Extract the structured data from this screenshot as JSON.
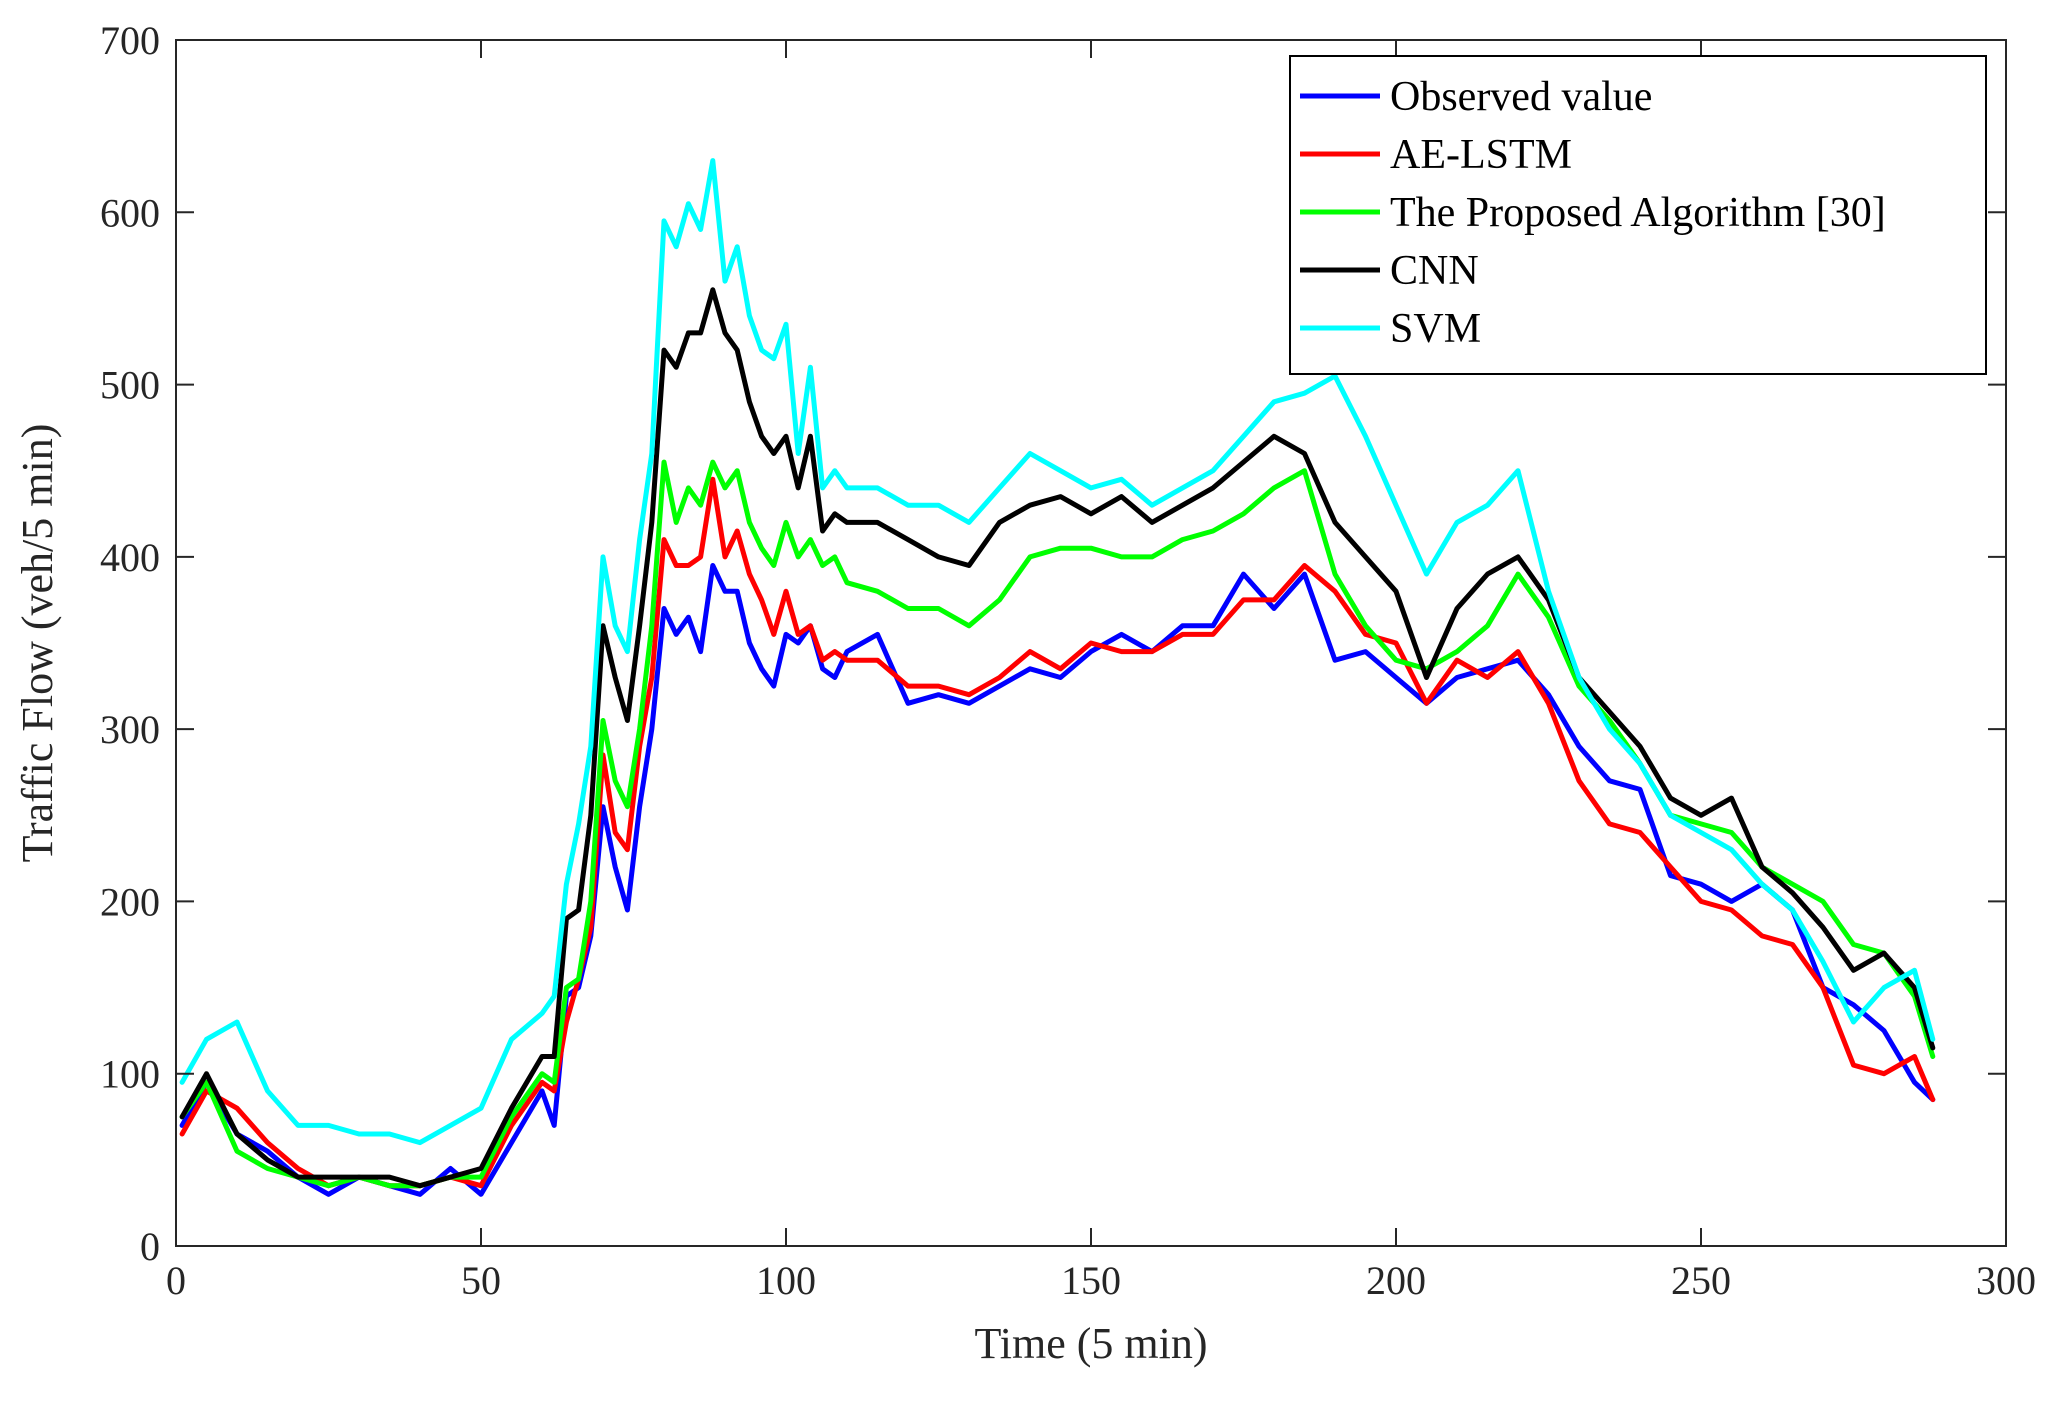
{
  "chart_data": {
    "type": "line",
    "xlabel": "Time (5 min)",
    "ylabel": "Traffic Flow (veh/5 min)",
    "xlim": [
      0,
      300
    ],
    "ylim": [
      0,
      700
    ],
    "xticks": [
      0,
      50,
      100,
      150,
      200,
      250,
      300
    ],
    "yticks": [
      0,
      100,
      200,
      300,
      400,
      500,
      600,
      700
    ],
    "xtick_labels": [
      "0",
      "50",
      "100",
      "150",
      "200",
      "250",
      "300"
    ],
    "ytick_labels": [
      "0",
      "100",
      "200",
      "300",
      "400",
      "500",
      "600",
      "700"
    ],
    "grid": false,
    "legend": "top-right",
    "x": [
      1,
      5,
      10,
      15,
      20,
      25,
      30,
      35,
      40,
      45,
      50,
      55,
      60,
      62,
      64,
      66,
      68,
      70,
      72,
      74,
      76,
      78,
      80,
      82,
      84,
      86,
      88,
      90,
      92,
      94,
      96,
      98,
      100,
      102,
      104,
      106,
      108,
      110,
      115,
      120,
      125,
      130,
      135,
      140,
      145,
      150,
      155,
      160,
      165,
      170,
      175,
      180,
      185,
      190,
      195,
      200,
      205,
      210,
      215,
      220,
      225,
      230,
      235,
      240,
      245,
      250,
      255,
      260,
      265,
      270,
      275,
      280,
      285,
      288
    ],
    "series": [
      {
        "name": "Observed value",
        "color": "#0000ff",
        "values": [
          70,
          95,
          65,
          55,
          40,
          30,
          40,
          35,
          30,
          45,
          30,
          60,
          90,
          70,
          145,
          150,
          180,
          255,
          220,
          195,
          255,
          300,
          370,
          355,
          365,
          345,
          395,
          380,
          380,
          350,
          335,
          325,
          355,
          350,
          360,
          335,
          330,
          345,
          355,
          315,
          320,
          315,
          325,
          335,
          330,
          345,
          355,
          345,
          360,
          360,
          390,
          370,
          390,
          340,
          345,
          330,
          315,
          330,
          335,
          340,
          320,
          290,
          270,
          265,
          215,
          210,
          200,
          210,
          195,
          150,
          140,
          125,
          95,
          85
        ]
      },
      {
        "name": "AE-LSTM",
        "color": "#ff0000",
        "values": [
          65,
          90,
          80,
          60,
          45,
          35,
          40,
          35,
          35,
          40,
          35,
          70,
          95,
          90,
          130,
          155,
          185,
          285,
          240,
          230,
          290,
          330,
          410,
          395,
          395,
          400,
          445,
          400,
          415,
          390,
          375,
          355,
          380,
          355,
          360,
          340,
          345,
          340,
          340,
          325,
          325,
          320,
          330,
          345,
          335,
          350,
          345,
          345,
          355,
          355,
          375,
          375,
          395,
          380,
          355,
          350,
          315,
          340,
          330,
          345,
          315,
          270,
          245,
          240,
          220,
          200,
          195,
          180,
          175,
          150,
          105,
          100,
          110,
          85
        ]
      },
      {
        "name": "The Proposed Algorithm [30]",
        "color": "#00ff00",
        "values": [
          75,
          95,
          55,
          45,
          40,
          35,
          40,
          35,
          35,
          40,
          40,
          75,
          100,
          95,
          150,
          155,
          200,
          305,
          270,
          255,
          300,
          360,
          455,
          420,
          440,
          430,
          455,
          440,
          450,
          420,
          405,
          395,
          420,
          400,
          410,
          395,
          400,
          385,
          380,
          370,
          370,
          360,
          375,
          400,
          405,
          405,
          400,
          400,
          410,
          415,
          425,
          440,
          450,
          390,
          360,
          340,
          335,
          345,
          360,
          390,
          365,
          325,
          305,
          280,
          250,
          245,
          240,
          220,
          210,
          200,
          175,
          170,
          145,
          110
        ]
      },
      {
        "name": "CNN",
        "color": "#000000",
        "values": [
          75,
          100,
          65,
          50,
          40,
          40,
          40,
          40,
          35,
          40,
          45,
          80,
          110,
          110,
          190,
          195,
          250,
          360,
          330,
          305,
          360,
          420,
          520,
          510,
          530,
          530,
          555,
          530,
          520,
          490,
          470,
          460,
          470,
          440,
          470,
          415,
          425,
          420,
          420,
          410,
          400,
          395,
          420,
          430,
          435,
          425,
          435,
          420,
          430,
          440,
          455,
          470,
          460,
          420,
          400,
          380,
          330,
          370,
          390,
          400,
          375,
          330,
          310,
          290,
          260,
          250,
          260,
          220,
          205,
          185,
          160,
          170,
          150,
          115
        ]
      },
      {
        "name": "SVM",
        "color": "#00ffff",
        "values": [
          95,
          120,
          130,
          90,
          70,
          70,
          65,
          65,
          60,
          70,
          80,
          120,
          135,
          145,
          210,
          245,
          290,
          400,
          360,
          345,
          410,
          460,
          595,
          580,
          605,
          590,
          630,
          560,
          580,
          540,
          520,
          515,
          535,
          460,
          510,
          440,
          450,
          440,
          440,
          430,
          430,
          420,
          440,
          460,
          450,
          440,
          445,
          430,
          440,
          450,
          470,
          490,
          495,
          505,
          470,
          430,
          390,
          420,
          430,
          450,
          380,
          330,
          300,
          280,
          250,
          240,
          230,
          210,
          195,
          165,
          130,
          150,
          160,
          120
        ]
      }
    ]
  }
}
